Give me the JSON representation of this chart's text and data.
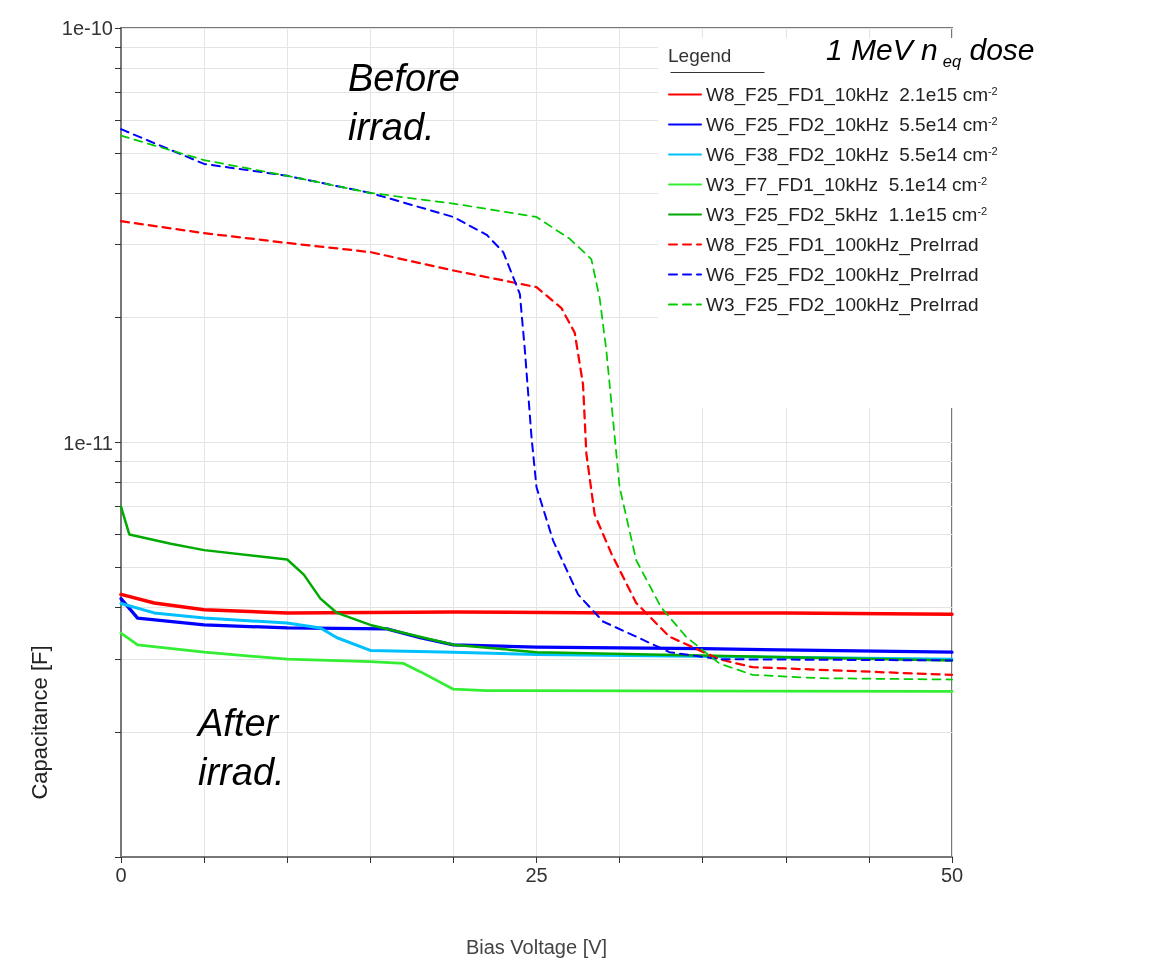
{
  "chart_data": {
    "type": "line",
    "xlabel": "Bias Voltage [V]",
    "ylabel": "Capacitance [F]",
    "legend_title": "Legend",
    "log": "y",
    "grid": true,
    "legend": "top right",
    "marker": "none",
    "annotations": [
      "1 MeV n$_{eq}$ dose",
      "Before irrad.",
      "After irrad."
    ],
    "xlim": [
      0,
      50
    ],
    "xticks": [
      0,
      {
        "value": 5,
        "label": null
      },
      {
        "value": 10,
        "label": null
      },
      {
        "value": 15,
        "label": null
      },
      {
        "value": 20,
        "label": null
      },
      25,
      {
        "value": 30,
        "label": null
      },
      {
        "value": 35,
        "label": null
      },
      {
        "value": 40,
        "label": null
      },
      {
        "value": 45,
        "label": null
      },
      50
    ],
    "ylim": [
      1e-12,
      1e-10
    ],
    "yticks": [
      {
        "value": 1e-12,
        "label": null
      },
      {
        "value": 2e-12,
        "label": null
      },
      {
        "value": 3e-12,
        "label": null
      },
      {
        "value": 4e-12,
        "label": null
      },
      {
        "value": 5e-12,
        "label": null
      },
      {
        "value": 6e-12,
        "label": null
      },
      {
        "value": 7e-12,
        "label": null
      },
      {
        "value": 8e-12,
        "label": null
      },
      {
        "value": 9e-12,
        "label": null
      },
      {
        "value": 1e-11,
        "label": "1e-11"
      },
      {
        "value": 2e-11,
        "label": null
      },
      {
        "value": 3e-11,
        "label": null
      },
      {
        "value": 4e-11,
        "label": null
      },
      {
        "value": 5e-11,
        "label": null
      },
      {
        "value": 6e-11,
        "label": null
      },
      {
        "value": 7e-11,
        "label": null
      },
      {
        "value": 8e-11,
        "label": null
      },
      {
        "value": 9e-11,
        "label": null
      },
      {
        "value": 1e-10,
        "label": "1e-10"
      }
    ],
    "series": [
      {
        "name": "W8_F25_FD1_10kHz  2.1e15 cm$^{-2}$",
        "color": "#ff0000",
        "line_style": "solid",
        "x": [
          0,
          2,
          5,
          10,
          20,
          30,
          40,
          50
        ],
        "values": [
          4.3e-12,
          4.1e-12,
          3.95e-12,
          3.88e-12,
          3.9e-12,
          3.88e-12,
          3.88e-12,
          3.85e-12
        ]
      },
      {
        "name": "W6_F25_FD2_10kHz  5.5e14 cm$^{-2}$",
        "color": "#0000ff",
        "line_style": "solid",
        "x": [
          0,
          1,
          5,
          10,
          16,
          18,
          20,
          25,
          35,
          50
        ],
        "values": [
          4.2e-12,
          3.77e-12,
          3.63e-12,
          3.57e-12,
          3.55e-12,
          3.38e-12,
          3.25e-12,
          3.21e-12,
          3.18e-12,
          3.12e-12
        ]
      },
      {
        "name": "W6_F38_FD2_10kHz  5.5e14 cm$^{-2}$",
        "color": "#00bfff",
        "line_style": "solid",
        "x": [
          0,
          2,
          5,
          10,
          12,
          13,
          15,
          20,
          25,
          50
        ],
        "values": [
          4.09e-12,
          3.88e-12,
          3.77e-12,
          3.67e-12,
          3.57e-12,
          3.38e-12,
          3.15e-12,
          3.12e-12,
          3.08e-12,
          3e-12
        ]
      },
      {
        "name": "W3_F7_FD1_10kHz  5.1e14 cm$^{-2}$",
        "color": "#33ee33",
        "line_style": "solid",
        "x": [
          0,
          1,
          5,
          10,
          15,
          17,
          18,
          20,
          22,
          50
        ],
        "values": [
          3.47e-12,
          3.25e-12,
          3.12e-12,
          3e-12,
          2.96e-12,
          2.93e-12,
          2.8e-12,
          2.54e-12,
          2.52e-12,
          2.51e-12
        ]
      },
      {
        "name": "W3_F25_FD2_5kHz  1.1e15 cm$^{-2}$",
        "color": "#00aa00",
        "line_style": "solid",
        "x": [
          0,
          0.5,
          3,
          5,
          10,
          11,
          12,
          13,
          15,
          20,
          25,
          50
        ],
        "values": [
          7e-12,
          6e-12,
          5.7e-12,
          5.5e-12,
          5.22e-12,
          4.8e-12,
          4.2e-12,
          3.88e-12,
          3.63e-12,
          3.25e-12,
          3.12e-12,
          2.98e-12
        ]
      },
      {
        "name": "W8_F25_FD1_100kHz_PreIrrad",
        "color": "#ff0000",
        "line_style": "dashed",
        "x": [
          0,
          5,
          10,
          15,
          20,
          23,
          25,
          26.5,
          27.3,
          27.8,
          28,
          28.5,
          29.5,
          31,
          33,
          36,
          38,
          40,
          50
        ],
        "values": [
          3.42e-11,
          3.2e-11,
          3.03e-11,
          2.88e-11,
          2.6e-11,
          2.46e-11,
          2.37e-11,
          2.11e-11,
          1.84e-11,
          1.38e-11,
          9.4e-12,
          6.7e-12,
          5.4e-12,
          4.1e-12,
          3.4e-12,
          3e-12,
          2.87e-12,
          2.85e-12,
          2.75e-12
        ]
      },
      {
        "name": "W6_F25_FD2_100kHz_PreIrrad",
        "color": "#0000ff",
        "line_style": "dashed",
        "x": [
          0,
          5,
          10,
          15,
          20,
          22,
          23,
          24,
          24.3,
          24.7,
          25,
          26,
          27.5,
          29,
          31,
          33,
          36,
          50
        ],
        "values": [
          5.7e-11,
          4.7e-11,
          4.4e-11,
          4e-11,
          3.5e-11,
          3.17e-11,
          2.88e-11,
          2.28e-11,
          1.67e-11,
          1.03e-11,
          7.8e-12,
          5.8e-12,
          4.3e-12,
          3.7e-12,
          3.4e-12,
          3.12e-12,
          3e-12,
          2.98e-12
        ]
      },
      {
        "name": "W3_F25_FD2_100kHz_PreIrrad",
        "color": "#00cc00",
        "line_style": "dashed",
        "x": [
          0,
          5,
          10,
          15,
          20,
          25,
          27,
          28.3,
          28.8,
          29.2,
          29.6,
          30,
          31,
          32.5,
          34,
          36,
          38,
          42,
          50
        ],
        "values": [
          5.5e-11,
          4.8e-11,
          4.4e-11,
          4e-11,
          3.77e-11,
          3.5e-11,
          3.1e-11,
          2.77e-11,
          2.23e-11,
          1.67e-11,
          1.14e-11,
          7.8e-12,
          5.2e-12,
          4e-12,
          3.4e-12,
          2.93e-12,
          2.75e-12,
          2.7e-12,
          2.68e-12
        ]
      }
    ]
  }
}
